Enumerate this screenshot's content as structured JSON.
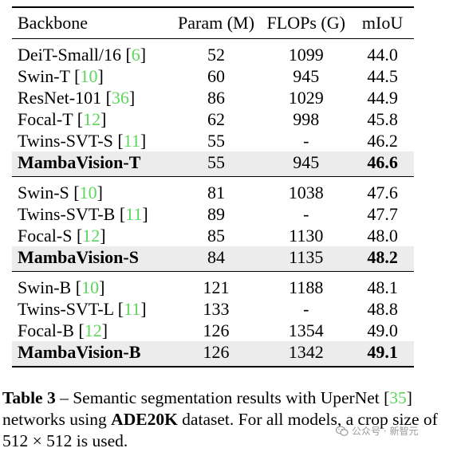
{
  "table": {
    "headers": [
      "Backbone",
      "Param (M)",
      "FLOPs (G)",
      "mIoU"
    ],
    "groups": [
      [
        {
          "name": "DeiT-Small/16",
          "ref": "6",
          "param": "52",
          "flops": "1099",
          "miou": "44.0",
          "highlight": false
        },
        {
          "name": "Swin-T",
          "ref": "10",
          "param": "60",
          "flops": "945",
          "miou": "44.5",
          "highlight": false
        },
        {
          "name": "ResNet-101",
          "ref": "36",
          "param": "86",
          "flops": "1029",
          "miou": "44.9",
          "highlight": false
        },
        {
          "name": "Focal-T",
          "ref": "12",
          "param": "62",
          "flops": "998",
          "miou": "45.8",
          "highlight": false
        },
        {
          "name": "Twins-SVT-S",
          "ref": "11",
          "param": "55",
          "flops": "-",
          "miou": "46.2",
          "highlight": false
        },
        {
          "name": "MambaVision-T",
          "ref": "",
          "param": "55",
          "flops": "945",
          "miou": "46.6",
          "highlight": true
        }
      ],
      [
        {
          "name": "Swin-S",
          "ref": "10",
          "param": "81",
          "flops": "1038",
          "miou": "47.6",
          "highlight": false
        },
        {
          "name": "Twins-SVT-B",
          "ref": "11",
          "param": "89",
          "flops": "-",
          "miou": "47.7",
          "highlight": false
        },
        {
          "name": "Focal-S",
          "ref": "12",
          "param": "85",
          "flops": "1130",
          "miou": "48.0",
          "highlight": false
        },
        {
          "name": "MambaVision-S",
          "ref": "",
          "param": "84",
          "flops": "1135",
          "miou": "48.2",
          "highlight": true
        }
      ],
      [
        {
          "name": "Swin-B",
          "ref": "10",
          "param": "121",
          "flops": "1188",
          "miou": "48.1",
          "highlight": false
        },
        {
          "name": "Twins-SVT-L",
          "ref": "11",
          "param": "133",
          "flops": "-",
          "miou": "48.8",
          "highlight": false
        },
        {
          "name": "Focal-B",
          "ref": "12",
          "param": "126",
          "flops": "1354",
          "miou": "49.0",
          "highlight": false
        },
        {
          "name": "MambaVision-B",
          "ref": "",
          "param": "126",
          "flops": "1342",
          "miou": "49.1",
          "highlight": true
        }
      ]
    ]
  },
  "caption": {
    "label": "Table 3",
    "dash": " – ",
    "text1": "Semantic segmentation results with UperNet [",
    "ref": "35",
    "text2": "] networks using ",
    "bold": "ADE20K",
    "text3": " dataset. For all models, a crop size of 512 × 512 is used."
  },
  "watermark": {
    "text": "公众号 · 新智元",
    "icon": "wechat-icon"
  },
  "colors": {
    "reference": "#5cd65c",
    "highlight_row": "#ececec"
  }
}
